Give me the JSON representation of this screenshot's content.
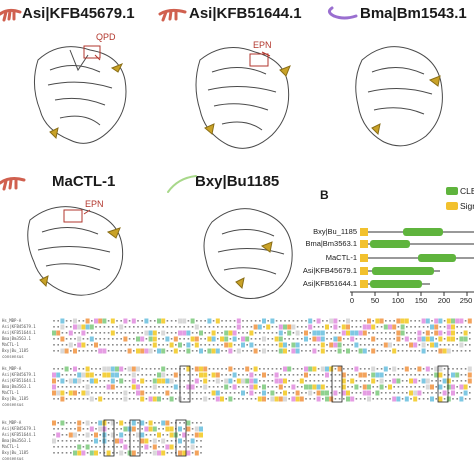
{
  "panels": [
    {
      "title": "Asi|KFB45679.1",
      "annotation": "QPD"
    },
    {
      "title": "Asi|KFB51644.1",
      "annotation": "EPN"
    },
    {
      "title": "Bma|Bm1543.1",
      "annotation": ""
    },
    {
      "title": "MaCTL-1",
      "annotation": "EPN"
    },
    {
      "title": "Bxy|Bu1185",
      "annotation": ""
    }
  ],
  "panel_b": {
    "label": "B",
    "legend": [
      {
        "name": "CLE",
        "color": "#5fb43d"
      },
      {
        "name": "Sign",
        "color": "#f2c12e"
      }
    ],
    "genes": [
      "Bxy|Bu_1185",
      "Bma|Bm3563.1",
      "MaCTL-1",
      "Asi|KFB45679.1",
      "Asi|KFB51644.1"
    ],
    "axis_ticks": [
      "0",
      "50",
      "100",
      "150",
      "200",
      "250"
    ]
  },
  "alignment": {
    "sequence_names": [
      "Hs_MBP-A",
      "Asi|KFB45679.1",
      "Asi|KFB51644.1",
      "Bma|Bm3563.1",
      "MaCTL-1",
      "Bxy|Bu_1185",
      "consensus"
    ]
  },
  "colors": {
    "ribbon": "#ffffff",
    "ribbon_stroke": "#4a4a4a",
    "highlight": "#c9a227",
    "annotation": "#b2362c",
    "cle": "#5fb43d",
    "signal": "#f2c12e"
  },
  "icons": [
    "nematode-icon-red",
    "nematode-icon-purple",
    "nematode-icon-green"
  ]
}
